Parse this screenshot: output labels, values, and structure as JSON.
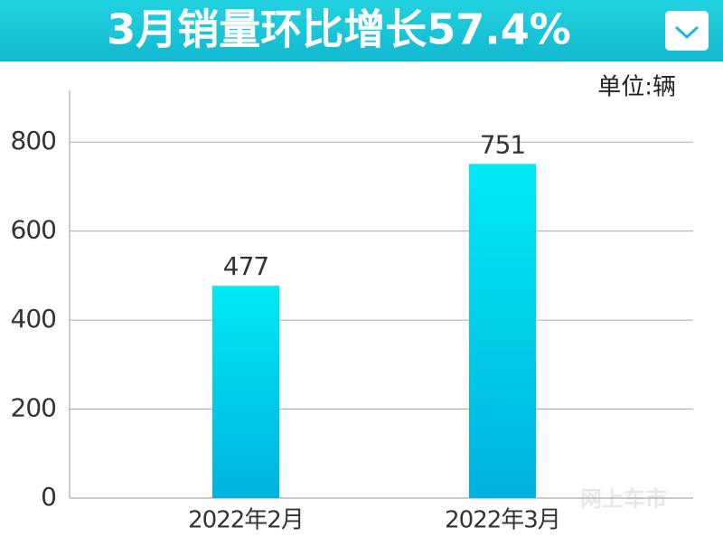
{
  "chart_data": {
    "type": "bar",
    "title": "3月销量环比增长57.4%",
    "unit": "单位:辆",
    "categories": [
      "2022年2月",
      "2022年3月"
    ],
    "values": [
      477,
      751
    ],
    "ylim": [
      0,
      900
    ],
    "yticks": [
      0,
      200,
      400,
      600,
      800
    ],
    "grid": true,
    "color": [
      "#00eaf4",
      "#00b2df"
    ],
    "watermark": "网上车市"
  }
}
